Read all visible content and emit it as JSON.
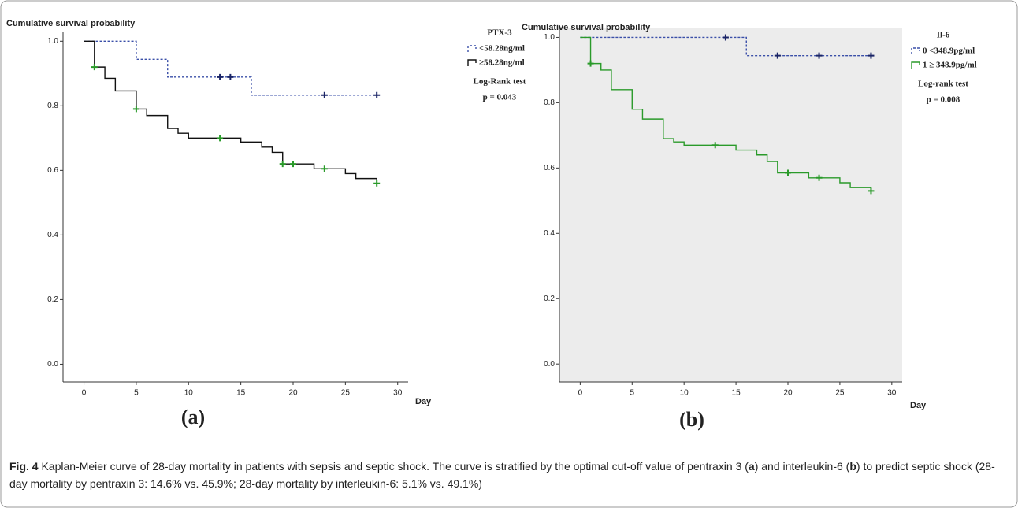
{
  "chart_data": [
    {
      "type": "step",
      "title": "Cumulative survival probability",
      "x_label": "Day",
      "panel_label": "(a)",
      "legend_title": "PTX-3",
      "annotations": [
        "Log-Rank test",
        "p = 0.043"
      ],
      "xlim": [
        -2,
        31
      ],
      "xticks": [
        0,
        5,
        10,
        15,
        20,
        25,
        30
      ],
      "ylim": [
        -0.055,
        1.03
      ],
      "yticks": [
        {
          "value": 0,
          "label": "0.0"
        },
        0.2,
        0.4,
        0.6,
        0.8,
        {
          "value": 1,
          "label": "1.0"
        }
      ],
      "series": [
        {
          "name": "<58.28ng/ml",
          "color": "#3a4fa8",
          "dash": true,
          "censor_color": "#1a2466",
          "x": [
            0,
            5,
            8,
            16,
            28
          ],
          "values": [
            1.0,
            0.944,
            0.889,
            0.833,
            0.833
          ],
          "censor_x": [
            13,
            14,
            23,
            28
          ],
          "censor_values": [
            0.889,
            0.889,
            0.833,
            0.833
          ]
        },
        {
          "name": "≥58.28ng/ml",
          "color": "#111111",
          "dash": false,
          "censor_color": "#2a9a2a",
          "x": [
            0,
            1,
            2,
            3,
            5,
            6,
            8,
            9,
            10,
            15,
            17,
            18,
            19,
            22,
            25,
            26,
            28
          ],
          "values": [
            1.0,
            0.92,
            0.885,
            0.846,
            0.79,
            0.77,
            0.73,
            0.715,
            0.7,
            0.688,
            0.672,
            0.656,
            0.62,
            0.605,
            0.59,
            0.575,
            0.56
          ],
          "censor_x": [
            1,
            5,
            13,
            19,
            20,
            23,
            28
          ],
          "censor_values": [
            0.92,
            0.79,
            0.7,
            0.62,
            0.62,
            0.605,
            0.56
          ]
        }
      ]
    },
    {
      "type": "step",
      "title": "Cumulative survival probability",
      "x_label": "Day",
      "panel_label": "(b)",
      "legend_title": "Il-6",
      "annotations": [
        "Log-rank test",
        "p = 0.008"
      ],
      "xlim": [
        -2,
        31
      ],
      "xticks": [
        0,
        5,
        10,
        15,
        20,
        25,
        30
      ],
      "ylim": [
        -0.055,
        1.03
      ],
      "yticks": [
        {
          "value": 0,
          "label": "0.0"
        },
        0.2,
        0.4,
        0.6,
        0.8,
        {
          "value": 1,
          "label": "1.0"
        }
      ],
      "background": "#ececec",
      "series": [
        {
          "name": "0 <348.9pg/ml",
          "color": "#3a4fa8",
          "dash": true,
          "censor_color": "#1a2466",
          "x": [
            0,
            16,
            28
          ],
          "values": [
            1.0,
            0.944,
            0.944
          ],
          "censor_x": [
            14,
            19,
            23,
            28
          ],
          "censor_values": [
            1.0,
            0.944,
            0.944,
            0.944
          ]
        },
        {
          "name": "1 ≥ 348.9pg/ml",
          "color": "#2a9a2a",
          "dash": false,
          "censor_color": "#2a9a2a",
          "x": [
            0,
            1,
            2,
            3,
            5,
            6,
            8,
            9,
            10,
            15,
            17,
            18,
            19,
            22,
            25,
            26,
            28
          ],
          "values": [
            1.0,
            0.92,
            0.9,
            0.84,
            0.78,
            0.75,
            0.69,
            0.68,
            0.67,
            0.655,
            0.64,
            0.62,
            0.585,
            0.57,
            0.555,
            0.54,
            0.53
          ],
          "censor_x": [
            1,
            13,
            20,
            23,
            28
          ],
          "censor_values": [
            0.92,
            0.67,
            0.585,
            0.57,
            0.53
          ]
        }
      ]
    }
  ],
  "caption": {
    "parts": [
      "Fig. 4",
      " Kaplan-Meier curve of 28-day mortality in patients with sepsis and septic shock. The curve is stratified by the optimal cut-off value of pentraxin 3 (",
      "a",
      ") and interleukin-6 (",
      "b",
      ") to predict septic shock (28-day mortality by pentraxin 3: 14.6% vs. 45.9%; 28-day mortality by interleukin-6: 5.1% vs. 49.1%)"
    ]
  }
}
